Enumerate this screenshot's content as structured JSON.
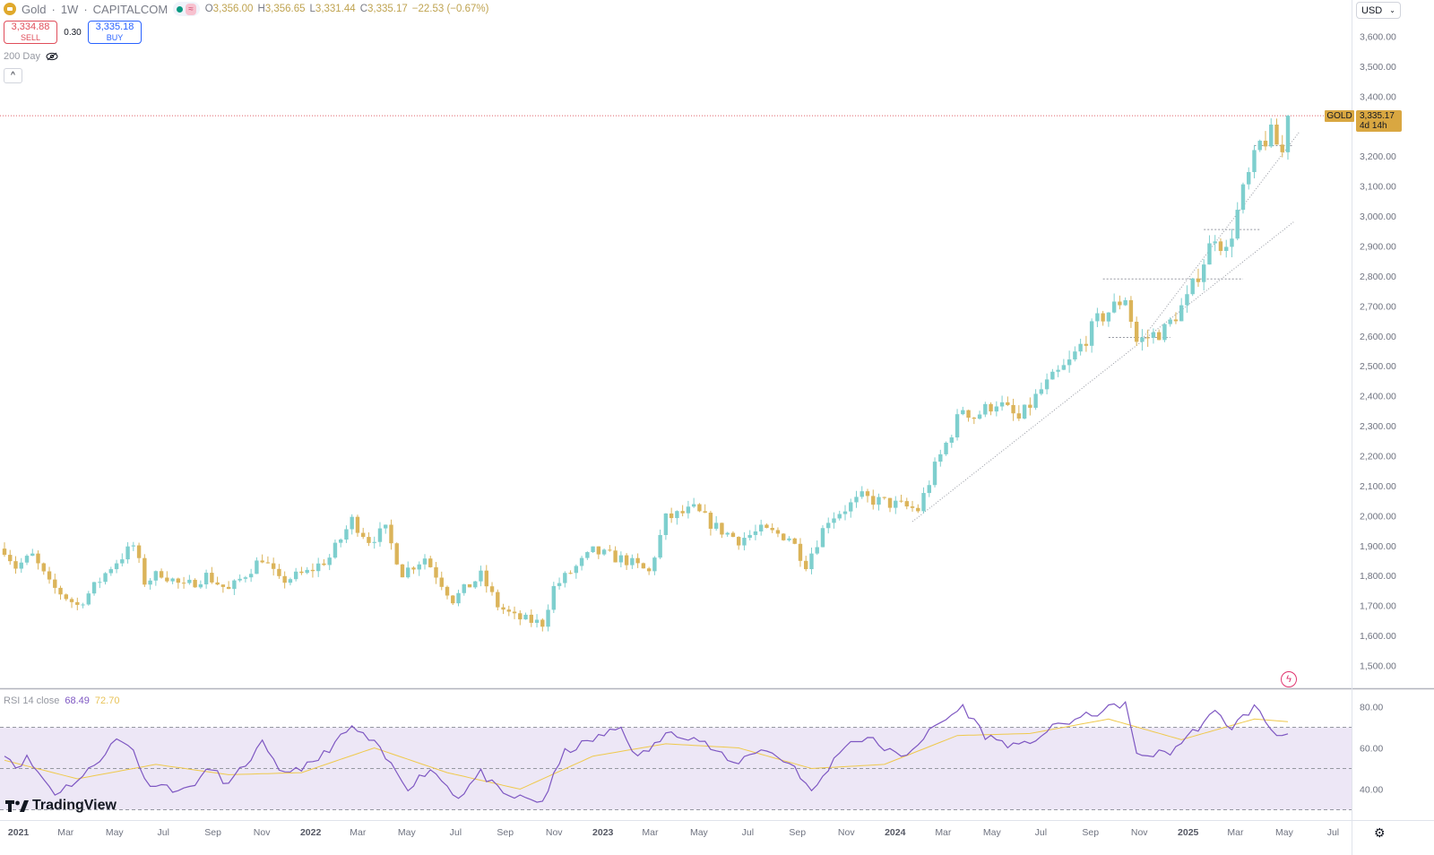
{
  "header": {
    "symbol": "Gold",
    "interval": "1W",
    "exchange": "CAPITALCOM",
    "open": "3,356.00",
    "high": "3,356.65",
    "low": "3,331.44",
    "close": "3,335.17",
    "change": "−22.53 (−0.67%)"
  },
  "trade": {
    "sell_price": "3,334.88",
    "sell_label": "SELL",
    "spread": "0.30",
    "buy_price": "3,335.18",
    "buy_label": "BUY"
  },
  "indicator": {
    "label": "200 Day"
  },
  "currency": "USD",
  "last_price": {
    "symbol_tag": "GOLD",
    "price": "3,335.17",
    "countdown": "4d 14h"
  },
  "rsi": {
    "label": "RSI 14 close",
    "value": "68.49",
    "ma_value": "72.70"
  },
  "watermark": "TradingView",
  "colors": {
    "up": "#7ecfce",
    "down": "#dbb45a",
    "rsi_line": "#7e57c2",
    "rsi_ma": "#efc94c",
    "rsi_band": "#ede7f6",
    "last_price": "#d9a741"
  },
  "icons": {
    "symbol": "gold-bar-icon",
    "visibility": "eye-off-icon",
    "collapse": "chevron-up-icon",
    "dropdown": "chevron-down-icon",
    "lightning": "lightning-icon",
    "settings": "gear-icon"
  },
  "chart_data": [
    {
      "type": "candlestick",
      "title": "Gold · 1W · CAPITALCOM",
      "y_ticks": [
        "3,600.00",
        "3,500.00",
        "3,400.00",
        "3,300.00",
        "3,200.00",
        "3,100.00",
        "3,000.00",
        "2,900.00",
        "2,800.00",
        "2,700.00",
        "2,600.00",
        "2,500.00",
        "2,400.00",
        "2,300.00",
        "2,200.00",
        "2,100.00",
        "2,000.00",
        "1,900.00",
        "1,800.00",
        "1,700.00",
        "1,600.00",
        "1,500.00"
      ],
      "ylim": [
        1475,
        3700
      ],
      "x_ticks": [
        {
          "label": "2021",
          "year": true
        },
        {
          "label": "Mar"
        },
        {
          "label": "May"
        },
        {
          "label": "Jul"
        },
        {
          "label": "Sep"
        },
        {
          "label": "Nov"
        },
        {
          "label": "2022",
          "year": true
        },
        {
          "label": "Mar"
        },
        {
          "label": "May"
        },
        {
          "label": "Jul"
        },
        {
          "label": "Sep"
        },
        {
          "label": "Nov"
        },
        {
          "label": "2023",
          "year": true
        },
        {
          "label": "Mar"
        },
        {
          "label": "May"
        },
        {
          "label": "Jul"
        },
        {
          "label": "Sep"
        },
        {
          "label": "Nov"
        },
        {
          "label": "2024",
          "year": true
        },
        {
          "label": "Mar"
        },
        {
          "label": "May"
        },
        {
          "label": "Jul"
        },
        {
          "label": "Sep"
        },
        {
          "label": "Nov"
        },
        {
          "label": "2025",
          "year": true
        },
        {
          "label": "Mar"
        },
        {
          "label": "May"
        },
        {
          "label": "Jul"
        }
      ],
      "close_anchors": [
        [
          "2020-12-28",
          1890
        ],
        [
          "2021-01-11",
          1830
        ],
        [
          "2021-02-01",
          1865
        ],
        [
          "2021-02-22",
          1770
        ],
        [
          "2021-03-29",
          1700
        ],
        [
          "2021-04-12",
          1740
        ],
        [
          "2021-05-10",
          1830
        ],
        [
          "2021-06-07",
          1900
        ],
        [
          "2021-06-21",
          1780
        ],
        [
          "2021-07-12",
          1810
        ],
        [
          "2021-08-09",
          1760
        ],
        [
          "2021-09-06",
          1800
        ],
        [
          "2021-10-04",
          1750
        ],
        [
          "2021-11-15",
          1860
        ],
        [
          "2021-12-06",
          1780
        ],
        [
          "2022-01-10",
          1810
        ],
        [
          "2022-02-07",
          1860
        ],
        [
          "2022-03-07",
          1985
        ],
        [
          "2022-03-28",
          1920
        ],
        [
          "2022-04-18",
          1950
        ],
        [
          "2022-05-09",
          1810
        ],
        [
          "2022-06-06",
          1860
        ],
        [
          "2022-07-11",
          1720
        ],
        [
          "2022-08-15",
          1800
        ],
        [
          "2022-09-05",
          1700
        ],
        [
          "2022-09-26",
          1660
        ],
        [
          "2022-10-31",
          1640
        ],
        [
          "2022-11-14",
          1760
        ],
        [
          "2023-01-02",
          1880
        ],
        [
          "2023-02-13",
          1850
        ],
        [
          "2023-03-13",
          1810
        ],
        [
          "2023-04-03",
          1990
        ],
        [
          "2023-05-08",
          2020
        ],
        [
          "2023-06-05",
          1960
        ],
        [
          "2023-07-03",
          1920
        ],
        [
          "2023-07-31",
          1950
        ],
        [
          "2023-09-04",
          1930
        ],
        [
          "2023-09-25",
          1840
        ],
        [
          "2023-10-23",
          1990
        ],
        [
          "2023-12-04",
          2060
        ],
        [
          "2024-01-08",
          2040
        ],
        [
          "2024-02-12",
          2020
        ],
        [
          "2024-03-04",
          2160
        ],
        [
          "2024-04-08",
          2360
        ],
        [
          "2024-04-22",
          2330
        ],
        [
          "2024-05-20",
          2380
        ],
        [
          "2024-06-17",
          2320
        ],
        [
          "2024-07-15",
          2420
        ],
        [
          "2024-08-19",
          2510
        ],
        [
          "2024-09-23",
          2650
        ],
        [
          "2024-10-28",
          2730
        ],
        [
          "2024-11-11",
          2580
        ],
        [
          "2024-12-16",
          2620
        ],
        [
          "2025-01-13",
          2720
        ],
        [
          "2025-02-17",
          2940
        ],
        [
          "2025-03-03",
          2880
        ],
        [
          "2025-03-24",
          3080
        ],
        [
          "2025-04-14",
          3240
        ],
        [
          "2025-04-28",
          3270
        ],
        [
          "2025-05-12",
          3210
        ],
        [
          "2025-05-19",
          3335
        ]
      ],
      "date_range": [
        "2020-12-28",
        "2025-05-19"
      ]
    },
    {
      "type": "line",
      "title": "RSI 14 close",
      "y_ticks": [
        "80.00",
        "60.00",
        "40.00"
      ],
      "ylim": [
        30,
        87
      ],
      "levels": [
        70,
        50,
        30
      ],
      "rsi_anchors": [
        [
          "2020-12-28",
          58
        ],
        [
          "2021-01-11",
          51
        ],
        [
          "2021-01-25",
          55
        ],
        [
          "2021-03-01",
          38
        ],
        [
          "2021-04-05",
          46
        ],
        [
          "2021-04-19",
          52
        ],
        [
          "2021-05-17",
          64
        ],
        [
          "2021-06-07",
          60
        ],
        [
          "2021-06-21",
          44
        ],
        [
          "2021-08-09",
          39
        ],
        [
          "2021-09-13",
          50
        ],
        [
          "2021-10-04",
          42
        ],
        [
          "2021-11-15",
          62
        ],
        [
          "2021-12-06",
          48
        ],
        [
          "2022-01-17",
          52
        ],
        [
          "2022-03-07",
          70
        ],
        [
          "2022-04-04",
          62
        ],
        [
          "2022-05-16",
          41
        ],
        [
          "2022-06-13",
          50
        ],
        [
          "2022-07-18",
          36
        ],
        [
          "2022-08-15",
          48
        ],
        [
          "2022-09-12",
          37
        ],
        [
          "2022-10-31",
          34
        ],
        [
          "2022-11-28",
          58
        ],
        [
          "2023-02-06",
          70
        ],
        [
          "2023-02-27",
          55
        ],
        [
          "2023-04-10",
          68
        ],
        [
          "2023-05-15",
          64
        ],
        [
          "2023-06-26",
          52
        ],
        [
          "2023-07-31",
          60
        ],
        [
          "2023-09-11",
          51
        ],
        [
          "2023-10-02",
          38
        ],
        [
          "2023-11-13",
          62
        ],
        [
          "2023-12-11",
          65
        ],
        [
          "2024-01-22",
          55
        ],
        [
          "2024-03-04",
          70
        ],
        [
          "2024-04-08",
          80
        ],
        [
          "2024-05-06",
          66
        ],
        [
          "2024-06-17",
          60
        ],
        [
          "2024-08-05",
          71
        ],
        [
          "2024-09-30",
          78
        ],
        [
          "2024-10-28",
          82
        ],
        [
          "2024-11-11",
          56
        ],
        [
          "2024-12-23",
          58
        ],
        [
          "2025-01-27",
          70
        ],
        [
          "2025-02-17",
          77
        ],
        [
          "2025-03-10",
          70
        ],
        [
          "2025-04-07",
          80
        ],
        [
          "2025-05-05",
          66
        ],
        [
          "2025-05-19",
          68.5
        ]
      ],
      "ma_anchors": [
        [
          "2020-12-28",
          54
        ],
        [
          "2021-03-29",
          45
        ],
        [
          "2021-07-05",
          52
        ],
        [
          "2021-10-04",
          47
        ],
        [
          "2022-01-03",
          48
        ],
        [
          "2022-04-04",
          60
        ],
        [
          "2022-07-04",
          48
        ],
        [
          "2022-10-03",
          40
        ],
        [
          "2023-01-02",
          56
        ],
        [
          "2023-04-03",
          62
        ],
        [
          "2023-07-03",
          60
        ],
        [
          "2023-10-02",
          50
        ],
        [
          "2024-01-01",
          52
        ],
        [
          "2024-04-01",
          66
        ],
        [
          "2024-07-01",
          67
        ],
        [
          "2024-10-07",
          74
        ],
        [
          "2025-01-06",
          64
        ],
        [
          "2025-04-07",
          74
        ],
        [
          "2025-05-19",
          72.7
        ]
      ]
    }
  ]
}
